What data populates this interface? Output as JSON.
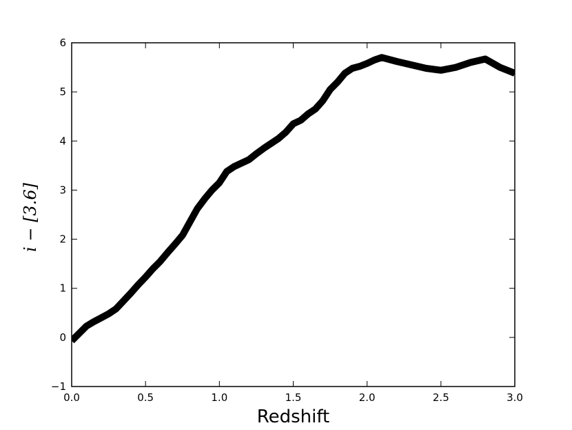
{
  "chart_data": {
    "type": "line",
    "xlabel": "Redshift",
    "ylabel": "i − [3.6]",
    "xlim": [
      0.0,
      3.0
    ],
    "ylim": [
      -1,
      6
    ],
    "xticks": [
      0.0,
      0.5,
      1.0,
      1.5,
      2.0,
      2.5,
      3.0
    ],
    "xtick_labels": [
      "0.0",
      "0.5",
      "1.0",
      "1.5",
      "2.0",
      "2.5",
      "3.0"
    ],
    "yticks": [
      -1,
      0,
      1,
      2,
      3,
      4,
      5,
      6
    ],
    "ytick_labels": [
      "−1",
      "0",
      "1",
      "2",
      "3",
      "4",
      "5",
      "6"
    ],
    "grid": false,
    "line_color": "#000000",
    "series": [
      {
        "x": [
          0.0,
          0.05,
          0.1,
          0.15,
          0.2,
          0.25,
          0.3,
          0.35,
          0.4,
          0.45,
          0.5,
          0.55,
          0.6,
          0.65,
          0.7,
          0.75,
          0.8,
          0.85,
          0.9,
          0.95,
          1.0,
          1.05,
          1.1,
          1.15,
          1.2,
          1.25,
          1.3,
          1.35,
          1.4,
          1.45,
          1.5,
          1.55,
          1.6,
          1.65,
          1.7,
          1.75,
          1.8,
          1.85,
          1.9,
          1.95,
          2.0,
          2.05,
          2.1,
          2.2,
          2.3,
          2.4,
          2.5,
          2.6,
          2.7,
          2.8,
          2.9,
          3.0
        ],
        "y": [
          -0.07,
          0.08,
          0.23,
          0.32,
          0.4,
          0.48,
          0.58,
          0.74,
          0.9,
          1.07,
          1.23,
          1.4,
          1.55,
          1.73,
          1.9,
          2.08,
          2.35,
          2.62,
          2.82,
          3.0,
          3.15,
          3.38,
          3.48,
          3.55,
          3.62,
          3.74,
          3.85,
          3.95,
          4.05,
          4.18,
          4.35,
          4.42,
          4.55,
          4.65,
          4.82,
          5.05,
          5.2,
          5.38,
          5.48,
          5.52,
          5.58,
          5.65,
          5.7,
          5.62,
          5.55,
          5.48,
          5.44,
          5.5,
          5.6,
          5.67,
          5.5,
          5.38
        ]
      }
    ]
  }
}
